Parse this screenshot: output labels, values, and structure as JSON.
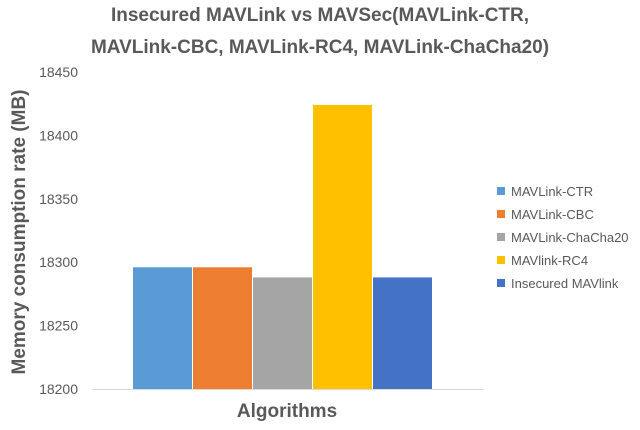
{
  "chart_data": {
    "type": "bar",
    "title_lines": [
      "Insecured MAVLink vs MAVSec(MAVLink-CTR,",
      "MAVLink-CBC, MAVLink-RC4, MAVLink-ChaCha20)"
    ],
    "title": "Insecured MAVLink vs MAVSec(MAVLink-CTR, MAVLink-CBC, MAVLink-RC4, MAVLink-ChaCha20)",
    "xlabel": "Algorithms",
    "ylabel": "Memory consumption rate (MB)",
    "ylim": [
      18200,
      18450
    ],
    "yticks": [
      "18200",
      "18250",
      "18300",
      "18350",
      "18400",
      "18450"
    ],
    "grid": false,
    "legend_position": "right",
    "categories": [
      "Algorithms"
    ],
    "series": [
      {
        "name": "MAVLink-CTR",
        "values": [
          18296
        ],
        "color": "#5b9bd5"
      },
      {
        "name": "MAVLink-CBC",
        "values": [
          18296
        ],
        "color": "#ed7d31"
      },
      {
        "name": "MAVLink-ChaCha20",
        "values": [
          18288
        ],
        "color": "#a5a5a5"
      },
      {
        "name": "MAVlink-RC4",
        "values": [
          18424
        ],
        "color": "#ffc000"
      },
      {
        "name": "Insecured MAVlink",
        "values": [
          18288
        ],
        "color": "#4472c4"
      }
    ]
  }
}
